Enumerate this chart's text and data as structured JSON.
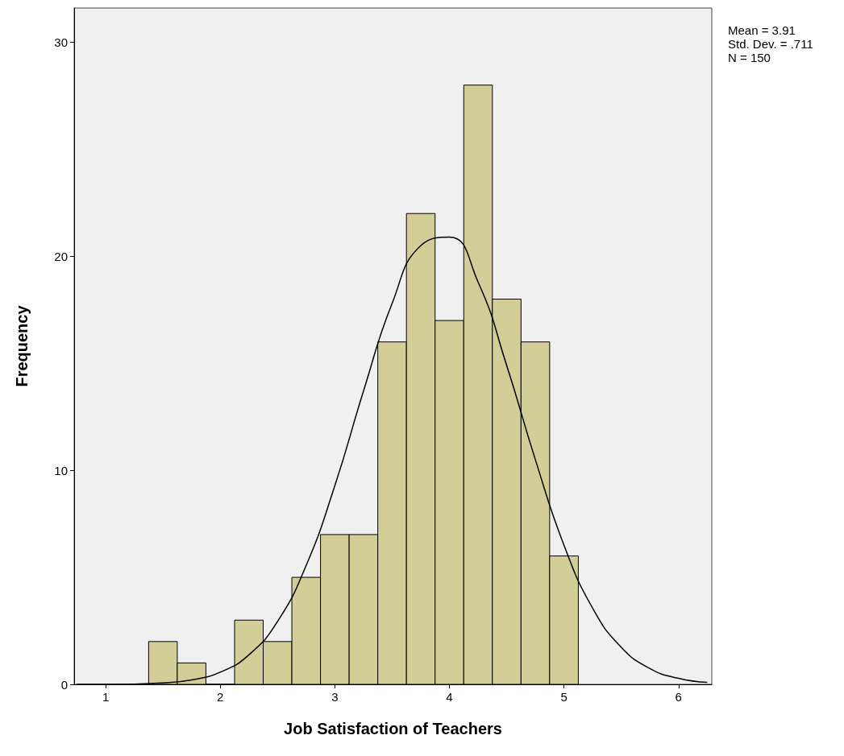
{
  "chart_data": {
    "type": "histogram",
    "xlabel": "Job Satisfaction of Teachers",
    "ylabel": "Frequency",
    "bins": [
      1.375,
      1.625,
      1.875,
      2.125,
      2.375,
      2.625,
      2.875,
      3.125,
      3.375,
      3.625,
      3.875,
      4.125,
      4.375,
      4.625,
      4.875,
      5.125
    ],
    "values": [
      2,
      1,
      0,
      3,
      2,
      5,
      7,
      7,
      16,
      22,
      17,
      28,
      18,
      16,
      6
    ],
    "color": "#d3ce97",
    "series": [
      {
        "type": "line",
        "color": "#000000",
        "x": [
          0.75,
          1.0,
          1.5,
          1.75,
          2.0,
          2.25,
          2.5,
          2.75,
          3.0,
          3.25,
          3.5,
          3.75,
          4.0,
          4.25,
          4.5,
          4.75,
          5.0,
          5.25,
          5.5,
          5.75,
          6.0,
          6.25
        ],
        "values": [
          0,
          0,
          0.07,
          0.21,
          0.57,
          1.38,
          2.94,
          5.56,
          9.28,
          13.7,
          17.8,
          20.5,
          20.9,
          18.8,
          14.9,
          10.5,
          6.5,
          3.56,
          1.73,
          0.74,
          0.28,
          0.09
        ]
      }
    ],
    "xlim": [
      0.725,
      6.29
    ],
    "xticks": [
      1,
      2,
      3,
      4,
      5,
      6
    ],
    "ylim": [
      0,
      31.6
    ],
    "yticks": [
      0,
      10,
      20,
      30
    ],
    "grid": false,
    "annotations": [
      "Mean = 3.91",
      "Std. Dev. = .711",
      "N = 150"
    ]
  }
}
